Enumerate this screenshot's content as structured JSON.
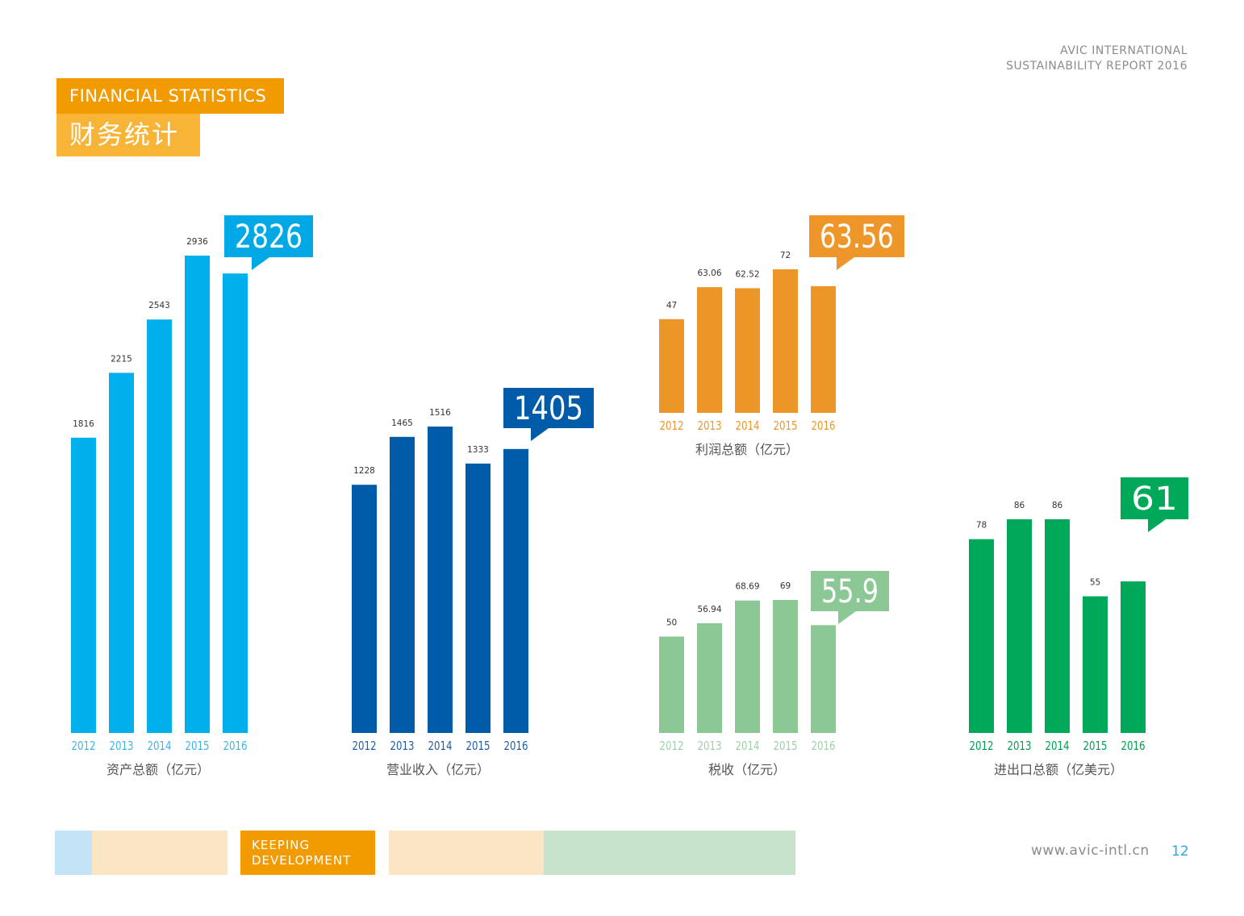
{
  "header": {
    "line1": "AVIC INTERNATIONAL",
    "line2": "SUSTAINABILITY REPORT 2016"
  },
  "title": {
    "en": "FINANCIAL STATISTICS",
    "cn": "财务统计"
  },
  "footer": {
    "tag_line1": "KEEPING",
    "tag_line2": "DEVELOPMENT",
    "url": "www.avic-intl.cn",
    "page_number": "12"
  },
  "chart_data": [
    {
      "type": "bar",
      "title": "资产总额（亿元）",
      "categories": [
        "2012",
        "2013",
        "2014",
        "2015",
        "2016"
      ],
      "values": [
        1816,
        2215,
        2543,
        2936,
        2826
      ],
      "labels": [
        "1816",
        "2215",
        "2543",
        "2936",
        ""
      ],
      "highlight": "2826",
      "ylim": [
        0,
        2936
      ],
      "color": "#00b0ec",
      "callout_color": "#00a8e6",
      "tick_color": "#3bb5e8",
      "callout_text_color": "#ffffff"
    },
    {
      "type": "bar",
      "title": "营业收入（亿元）",
      "categories": [
        "2012",
        "2013",
        "2014",
        "2015",
        "2016"
      ],
      "values": [
        1228,
        1465,
        1516,
        1333,
        1405
      ],
      "labels": [
        "1228",
        "1465",
        "1516",
        "1333",
        ""
      ],
      "highlight": "1405",
      "ylim": [
        0,
        1516
      ],
      "color": "#005ca8",
      "callout_color": "#005ca8",
      "tick_color": "#1e5ea8",
      "callout_text_color": "#ffffff"
    },
    {
      "type": "bar",
      "title": "利润总额（亿元）",
      "categories": [
        "2012",
        "2013",
        "2014",
        "2015",
        "2016"
      ],
      "values": [
        47,
        63.06,
        62.52,
        72,
        63.56
      ],
      "labels": [
        "47",
        "63.06",
        "62.52",
        "72",
        ""
      ],
      "highlight": "63.56",
      "ylim": [
        0,
        72
      ],
      "color": "#ec9628",
      "callout_color": "#ee9629",
      "tick_color": "#ee9629",
      "callout_text_color": "#ffffff"
    },
    {
      "type": "bar",
      "title": "税收（亿元）",
      "categories": [
        "2012",
        "2013",
        "2014",
        "2015",
        "2016"
      ],
      "values": [
        50,
        56.94,
        68.69,
        69,
        55.9
      ],
      "labels": [
        "50",
        "56.94",
        "68.69",
        "69",
        ""
      ],
      "highlight": "55.9",
      "ylim": [
        0,
        69
      ],
      "color": "#8cc896",
      "callout_color": "#8cc896",
      "tick_color": "#9fd0a8",
      "callout_text_color": "#ffffff"
    },
    {
      "type": "bar",
      "title": "进出口总额（亿美元）",
      "categories": [
        "2012",
        "2013",
        "2014",
        "2015",
        "2016"
      ],
      "values": [
        78,
        86,
        86,
        55,
        61
      ],
      "labels": [
        "78",
        "86",
        "86",
        "55",
        ""
      ],
      "highlight": "61",
      "ylim": [
        0,
        86
      ],
      "color": "#00a85a",
      "callout_color": "#00a85a",
      "tick_color": "#00a04e",
      "callout_text_color": "#ffffff"
    }
  ],
  "colors": {
    "orange": "#f29b00",
    "light_orange": "#f7b436",
    "band_blue": "#c3e4f6",
    "band_peach": "#fbe5c4",
    "band_green": "#c8e3cb"
  }
}
